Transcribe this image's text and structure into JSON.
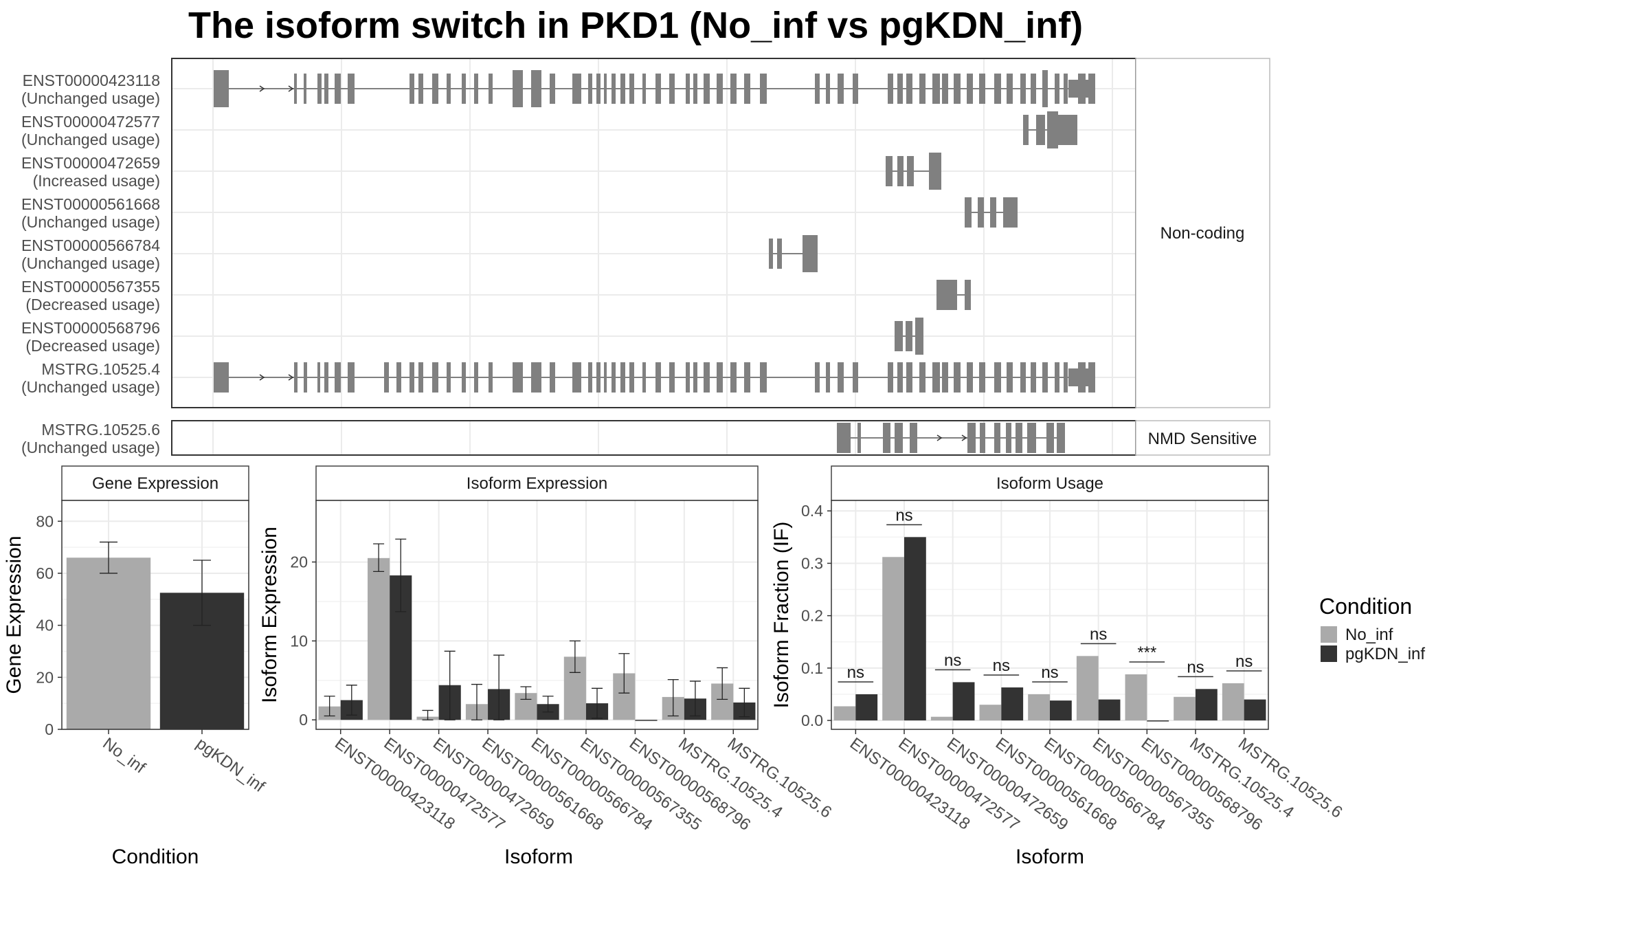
{
  "title": "The isoform switch in PKD1 (No_inf vs pgKDN_inf)",
  "colors": {
    "No_inf": "#aaaaaa",
    "pgKDN_inf": "#333333",
    "structure": "#808080",
    "grid": "#ebebeb",
    "strip": "#ffffff"
  },
  "legend": {
    "title": "Condition",
    "entries": [
      "No_inf",
      "pgKDN_inf"
    ],
    "position": "right"
  },
  "structure_panel": {
    "strip_labels": [
      "Non-coding",
      "NMD Sensitive"
    ],
    "transcripts": [
      {
        "id": "ENST00000423118",
        "usage": "(Unchanged usage)",
        "group": "Non-coding"
      },
      {
        "id": "ENST00000472577",
        "usage": "(Unchanged usage)",
        "group": "Non-coding"
      },
      {
        "id": "ENST00000472659",
        "usage": "(Increased usage)",
        "group": "Non-coding"
      },
      {
        "id": "ENST00000561668",
        "usage": "(Unchanged usage)",
        "group": "Non-coding"
      },
      {
        "id": "ENST00000566784",
        "usage": "(Unchanged usage)",
        "group": "Non-coding"
      },
      {
        "id": "ENST00000567355",
        "usage": "(Decreased usage)",
        "group": "Non-coding"
      },
      {
        "id": "ENST00000568796",
        "usage": "(Decreased usage)",
        "group": "Non-coding"
      },
      {
        "id": "MSTRG.10525.4",
        "usage": "(Unchanged usage)",
        "group": "Non-coding"
      },
      {
        "id": "MSTRG.10525.6",
        "usage": "(Unchanged usage)",
        "group": "NMD Sensitive"
      }
    ]
  },
  "chart_data": [
    {
      "type": "bar",
      "title": "Gene Expression",
      "xlabel": "Condition",
      "ylabel": "Gene Expression",
      "categories": [
        "No_inf",
        "pgKDN_inf"
      ],
      "values": [
        66,
        52.5
      ],
      "error": [
        [
          60,
          72
        ],
        [
          40,
          65
        ]
      ],
      "ylim": [
        0,
        88
      ],
      "yticks": [
        0,
        20,
        40,
        60,
        80
      ],
      "grid": true
    },
    {
      "type": "bar",
      "title": "Isoform Expression",
      "xlabel": "Isoform",
      "ylabel": "Isoform Expression",
      "categories": [
        "ENST00000423118",
        "ENST00000472577",
        "ENST00000472659",
        "ENST00000561668",
        "ENST00000566784",
        "ENST00000567355",
        "ENST00000568796",
        "MSTRG.10525.4",
        "MSTRG.10525.6"
      ],
      "series": [
        {
          "name": "No_inf",
          "values": [
            1.7,
            20.5,
            0.4,
            2.0,
            3.4,
            8.0,
            5.9,
            2.9,
            4.6
          ],
          "error": [
            [
              0.5,
              3.0
            ],
            [
              18.8,
              22.3
            ],
            [
              0.0,
              1.2
            ],
            [
              0.0,
              4.5
            ],
            [
              2.6,
              4.2
            ],
            [
              6.0,
              10.0
            ],
            [
              3.4,
              8.4
            ],
            [
              0.5,
              5.1
            ],
            [
              2.6,
              6.6
            ]
          ]
        },
        {
          "name": "pgKDN_inf",
          "values": [
            2.5,
            18.3,
            4.4,
            3.9,
            2.0,
            2.1,
            0.0,
            2.7,
            2.2
          ],
          "error": [
            [
              0.6,
              4.4
            ],
            [
              13.7,
              22.9
            ],
            [
              0.0,
              8.7
            ],
            [
              0.0,
              8.2
            ],
            [
              1.0,
              3.0
            ],
            [
              0.2,
              4.0
            ],
            [
              0.0,
              0.0
            ],
            [
              0.5,
              4.9
            ],
            [
              0.4,
              4.0
            ]
          ]
        }
      ],
      "ylim": [
        -1.2,
        27.8
      ],
      "yticks": [
        0,
        10,
        20
      ],
      "grid": true
    },
    {
      "type": "bar",
      "title": "Isoform Usage",
      "xlabel": "Isoform",
      "ylabel": "Isoform Fraction (IF)",
      "categories": [
        "ENST00000423118",
        "ENST00000472577",
        "ENST00000472659",
        "ENST00000561668",
        "ENST00000566784",
        "ENST00000567355",
        "ENST00000568796",
        "MSTRG.10525.4",
        "MSTRG.10525.6"
      ],
      "series": [
        {
          "name": "No_inf",
          "values": [
            0.027,
            0.312,
            0.007,
            0.03,
            0.05,
            0.123,
            0.088,
            0.045,
            0.071
          ]
        },
        {
          "name": "pgKDN_inf",
          "values": [
            0.05,
            0.35,
            0.073,
            0.063,
            0.038,
            0.04,
            0.0,
            0.06,
            0.04
          ]
        }
      ],
      "significance": [
        "ns",
        "ns",
        "ns",
        "ns",
        "ns",
        "ns",
        "***",
        "ns",
        "ns"
      ],
      "ylim": [
        -0.017,
        0.42
      ],
      "yticks": [
        0.0,
        0.1,
        0.2,
        0.3,
        0.4
      ],
      "ytick_labels": [
        "0.0",
        "0.1",
        "0.2",
        "0.3",
        "0.4"
      ],
      "grid": true
    }
  ]
}
